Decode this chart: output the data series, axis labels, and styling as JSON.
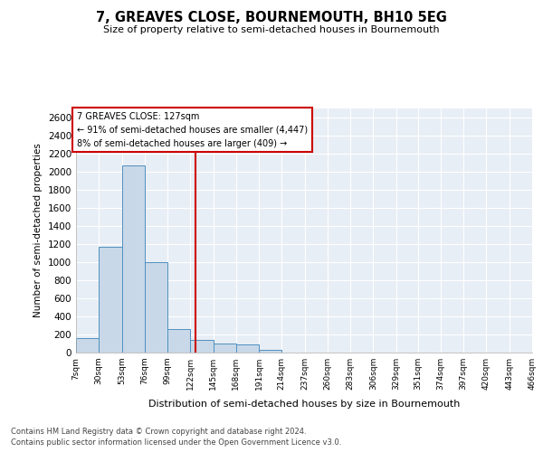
{
  "title": "7, GREAVES CLOSE, BOURNEMOUTH, BH10 5EG",
  "subtitle": "Size of property relative to semi-detached houses in Bournemouth",
  "xlabel": "Distribution of semi-detached houses by size in Bournemouth",
  "ylabel": "Number of semi-detached properties",
  "property_size": 127,
  "property_label": "7 GREAVES CLOSE: 127sqm",
  "annotation_line1": "← 91% of semi-detached houses are smaller (4,447)",
  "annotation_line2": "8% of semi-detached houses are larger (409) →",
  "bin_edges": [
    7,
    30,
    53,
    76,
    99,
    122,
    145,
    168,
    191,
    214,
    237,
    260,
    283,
    306,
    329,
    351,
    374,
    397,
    420,
    443,
    466
  ],
  "bar_heights": [
    160,
    1175,
    2075,
    1000,
    260,
    140,
    100,
    95,
    30,
    5,
    0,
    0,
    5,
    0,
    0,
    0,
    0,
    0,
    0,
    0
  ],
  "bar_color": "#c8d8e8",
  "bar_edgecolor": "#5090c0",
  "vline_color": "#cc0000",
  "vline_x": 127,
  "annotation_box_color": "#cc0000",
  "ylim": [
    0,
    2700
  ],
  "yticks": [
    0,
    200,
    400,
    600,
    800,
    1000,
    1200,
    1400,
    1600,
    1800,
    2000,
    2200,
    2400,
    2600
  ],
  "grid_color": "white",
  "background_color": "#e8eef5",
  "footer_line1": "Contains HM Land Registry data © Crown copyright and database right 2024.",
  "footer_line2": "Contains public sector information licensed under the Open Government Licence v3.0.",
  "tick_labels": [
    "7sqm",
    "30sqm",
    "53sqm",
    "76sqm",
    "99sqm",
    "122sqm",
    "145sqm",
    "168sqm",
    "191sqm",
    "214sqm",
    "237sqm",
    "260sqm",
    "283sqm",
    "306sqm",
    "329sqm",
    "351sqm",
    "374sqm",
    "397sqm",
    "420sqm",
    "443sqm",
    "466sqm"
  ]
}
